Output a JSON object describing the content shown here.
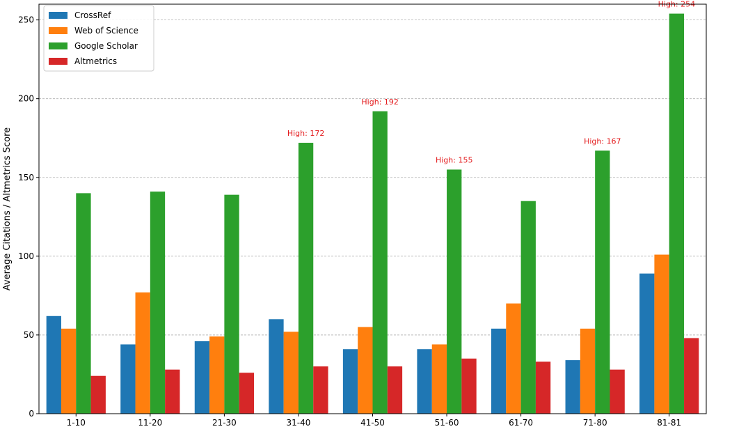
{
  "chart_data": {
    "type": "bar",
    "categories": [
      "1-10",
      "11-20",
      "21-30",
      "31-40",
      "41-50",
      "51-60",
      "61-70",
      "71-80",
      "81-81"
    ],
    "series": [
      {
        "name": "CrossRef",
        "color": "#1f77b4",
        "values": [
          62,
          44,
          46,
          60,
          41,
          41,
          54,
          34,
          89
        ]
      },
      {
        "name": "Web of Science",
        "color": "#ff7f0e",
        "values": [
          54,
          77,
          49,
          52,
          55,
          44,
          70,
          54,
          101
        ]
      },
      {
        "name": "Google Scholar",
        "color": "#2ca02c",
        "values": [
          140,
          141,
          139,
          172,
          192,
          155,
          135,
          167,
          254
        ]
      },
      {
        "name": "Altmetrics",
        "color": "#d62728",
        "values": [
          24,
          28,
          26,
          30,
          30,
          35,
          33,
          28,
          48
        ]
      }
    ],
    "ylabel": "Average Citations / Altmetrics Score",
    "xlabel": "",
    "ylim": [
      0,
      260
    ],
    "yticks": [
      0,
      50,
      100,
      150,
      200,
      250
    ],
    "grid": "y-dashed",
    "legend_position": "top-left",
    "annotations": [
      {
        "category": "31-40",
        "series": "Google Scholar",
        "text": "High: 172",
        "color": "#e31a1c"
      },
      {
        "category": "41-50",
        "series": "Google Scholar",
        "text": "High: 192",
        "color": "#e31a1c"
      },
      {
        "category": "51-60",
        "series": "Google Scholar",
        "text": "High: 155",
        "color": "#e31a1c"
      },
      {
        "category": "71-80",
        "series": "Google Scholar",
        "text": "High: 167",
        "color": "#e31a1c"
      },
      {
        "category": "81-81",
        "series": "Google Scholar",
        "text": "High: 254",
        "color": "#e31a1c"
      }
    ]
  }
}
